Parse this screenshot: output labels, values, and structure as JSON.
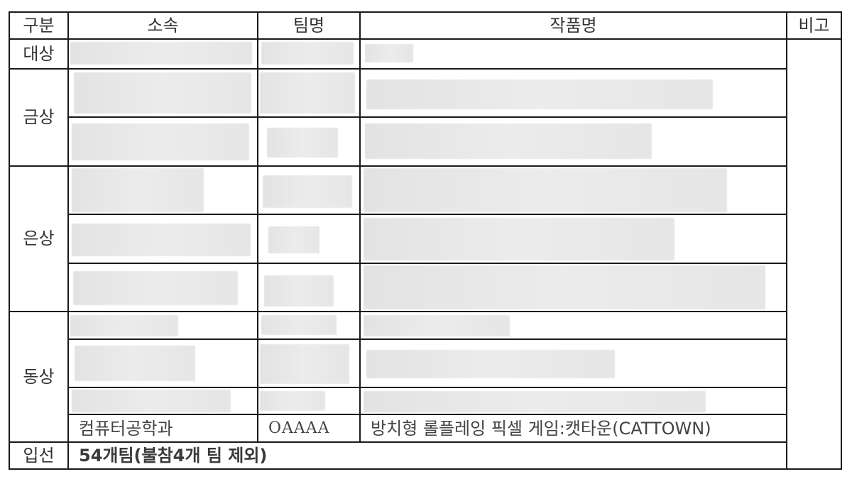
{
  "headers": {
    "category": "구분",
    "affiliation": "소속",
    "team": "팀명",
    "work": "작품명",
    "note": "비고"
  },
  "ranks": {
    "grand": "대상",
    "gold": "금상",
    "silver": "은상",
    "bronze": "동상",
    "entry": "입선"
  },
  "last_bronze_row": {
    "affiliation": "컴퓨터공학과",
    "team": "OAAAA",
    "work": "방치형 롤플레잉 픽셀 게임:캣타운(CATTOWN)"
  },
  "entry_summary": "54개팀(불참4개 팀 제외)",
  "colors": {
    "border": "#1a1a1a",
    "redaction": "#e6e6e6"
  }
}
